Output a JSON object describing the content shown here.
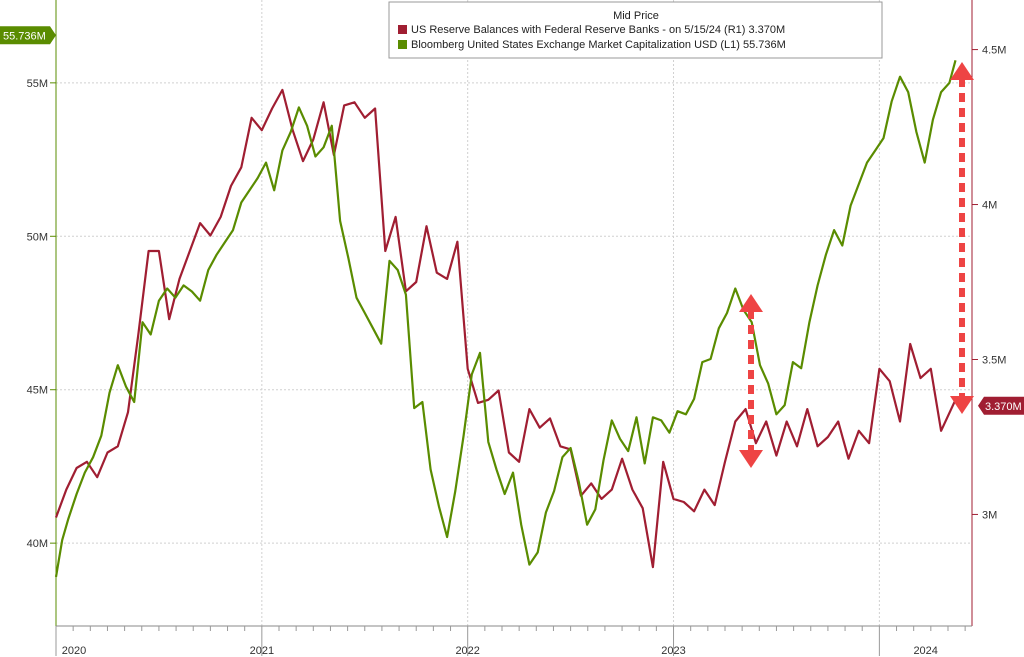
{
  "chart_data": {
    "type": "line",
    "legend": {
      "header": "Mid Price",
      "placement": "top-center",
      "entries": [
        {
          "label": "US Reserve Balances with Federal Reserve Banks -  on 5/15/24  (R1) 3.370M",
          "color": "#a01e32"
        },
        {
          "label": "Bloomberg United States Exchange Market Capitalization USD  (L1)     55.736M",
          "color": "#5a8c00"
        }
      ]
    },
    "y_left": {
      "ticks": [
        40,
        45,
        50,
        55
      ],
      "tick_labels": [
        "40M",
        "45M",
        "50M",
        "55M"
      ],
      "range": [
        37.3,
        57.7
      ]
    },
    "y_right": {
      "ticks": [
        3.0,
        3.5,
        4.0,
        4.5
      ],
      "tick_labels": [
        "3M",
        "3.5M",
        "4M",
        "4.5M"
      ],
      "range": [
        2.64,
        4.66
      ]
    },
    "x_axis": {
      "year_labels": [
        "2020",
        "2021",
        "2022",
        "2023",
        "2024"
      ],
      "range": [
        2020.0,
        2024.45
      ]
    },
    "current_value_tags": {
      "left": {
        "text": "55.736M",
        "color": "#5a8c00"
      },
      "right": {
        "text": "3.370M",
        "color": "#a01e32"
      }
    },
    "grid": true,
    "series": [
      {
        "name": "US Reserve Balances with Federal Reserve Banks",
        "axis": "right",
        "color": "#a01e32",
        "x": [
          2020.0,
          2020.05,
          2020.1,
          2020.15,
          2020.2,
          2020.25,
          2020.3,
          2020.35,
          2020.4,
          2020.45,
          2020.5,
          2020.55,
          2020.6,
          2020.65,
          2020.7,
          2020.75,
          2020.8,
          2020.85,
          2020.9,
          2020.95,
          2021.0,
          2021.05,
          2021.1,
          2021.15,
          2021.2,
          2021.25,
          2021.3,
          2021.35,
          2021.4,
          2021.45,
          2021.5,
          2021.55,
          2021.6,
          2021.65,
          2021.7,
          2021.75,
          2021.8,
          2021.85,
          2021.9,
          2021.95,
          2022.0,
          2022.05,
          2022.1,
          2022.15,
          2022.2,
          2022.25,
          2022.3,
          2022.35,
          2022.4,
          2022.45,
          2022.5,
          2022.55,
          2022.6,
          2022.65,
          2022.7,
          2022.75,
          2022.8,
          2022.85,
          2022.9,
          2022.95,
          2023.0,
          2023.05,
          2023.1,
          2023.15,
          2023.2,
          2023.25,
          2023.3,
          2023.35,
          2023.4,
          2023.45,
          2023.5,
          2023.55,
          2023.6,
          2023.65,
          2023.7,
          2023.75,
          2023.8,
          2023.85,
          2023.9,
          2023.95,
          2024.0,
          2024.05,
          2024.1,
          2024.15,
          2024.2,
          2024.25,
          2024.3,
          2024.37
        ],
        "values": [
          2.99,
          3.08,
          3.15,
          3.17,
          3.12,
          3.2,
          3.22,
          3.33,
          3.58,
          3.85,
          3.85,
          3.63,
          3.76,
          3.85,
          3.94,
          3.9,
          3.96,
          4.06,
          4.12,
          4.28,
          4.24,
          4.31,
          4.37,
          4.24,
          4.14,
          4.21,
          4.33,
          4.16,
          4.32,
          4.33,
          4.28,
          4.31,
          3.85,
          3.96,
          3.72,
          3.75,
          3.93,
          3.78,
          3.76,
          3.88,
          3.47,
          3.36,
          3.37,
          3.4,
          3.2,
          3.17,
          3.34,
          3.28,
          3.31,
          3.22,
          3.21,
          3.06,
          3.1,
          3.05,
          3.08,
          3.18,
          3.08,
          3.02,
          2.83,
          3.17,
          3.05,
          3.04,
          3.01,
          3.08,
          3.03,
          3.17,
          3.3,
          3.34,
          3.23,
          3.3,
          3.19,
          3.3,
          3.22,
          3.34,
          3.22,
          3.25,
          3.3,
          3.18,
          3.27,
          3.23,
          3.47,
          3.43,
          3.3,
          3.55,
          3.44,
          3.47,
          3.27,
          3.37
        ]
      },
      {
        "name": "Bloomberg United States Exchange Market Capitalization USD",
        "axis": "left",
        "color": "#5a8c00",
        "x": [
          2020.0,
          2020.03,
          2020.06,
          2020.1,
          2020.14,
          2020.18,
          2020.22,
          2020.26,
          2020.3,
          2020.34,
          2020.38,
          2020.42,
          2020.46,
          2020.5,
          2020.54,
          2020.58,
          2020.62,
          2020.66,
          2020.7,
          2020.74,
          2020.78,
          2020.82,
          2020.86,
          2020.9,
          2020.94,
          2020.98,
          2021.02,
          2021.06,
          2021.1,
          2021.14,
          2021.18,
          2021.22,
          2021.26,
          2021.3,
          2021.34,
          2021.38,
          2021.42,
          2021.46,
          2021.5,
          2021.54,
          2021.58,
          2021.62,
          2021.66,
          2021.7,
          2021.74,
          2021.78,
          2021.82,
          2021.86,
          2021.9,
          2021.94,
          2021.98,
          2022.02,
          2022.06,
          2022.1,
          2022.14,
          2022.18,
          2022.22,
          2022.26,
          2022.3,
          2022.34,
          2022.38,
          2022.42,
          2022.46,
          2022.5,
          2022.54,
          2022.58,
          2022.62,
          2022.66,
          2022.7,
          2022.74,
          2022.78,
          2022.82,
          2022.86,
          2022.9,
          2022.94,
          2022.98,
          2023.02,
          2023.06,
          2023.1,
          2023.14,
          2023.18,
          2023.22,
          2023.26,
          2023.3,
          2023.34,
          2023.38,
          2023.42,
          2023.46,
          2023.5,
          2023.54,
          2023.58,
          2023.62,
          2023.66,
          2023.7,
          2023.74,
          2023.78,
          2023.82,
          2023.86,
          2023.9,
          2023.94,
          2023.98,
          2024.02,
          2024.06,
          2024.1,
          2024.14,
          2024.18,
          2024.22,
          2024.26,
          2024.3,
          2024.34,
          2024.37
        ],
        "values": [
          38.9,
          40.1,
          40.8,
          41.6,
          42.3,
          42.8,
          43.5,
          44.9,
          45.8,
          45.1,
          44.6,
          47.2,
          46.8,
          47.9,
          48.3,
          48.0,
          48.4,
          48.2,
          47.9,
          48.9,
          49.4,
          49.8,
          50.2,
          51.1,
          51.5,
          51.9,
          52.4,
          51.5,
          52.8,
          53.4,
          54.2,
          53.6,
          52.6,
          52.9,
          53.6,
          50.5,
          49.3,
          48.0,
          47.5,
          47.0,
          46.5,
          49.2,
          48.9,
          48.1,
          44.4,
          44.6,
          42.4,
          41.2,
          40.2,
          41.7,
          43.5,
          45.5,
          46.2,
          43.3,
          42.4,
          41.6,
          42.3,
          40.6,
          39.3,
          39.7,
          41.0,
          41.7,
          42.8,
          43.1,
          42.0,
          40.6,
          41.1,
          42.7,
          44.0,
          43.4,
          43.0,
          44.1,
          42.6,
          44.1,
          44.0,
          43.6,
          44.3,
          44.2,
          44.7,
          45.9,
          46.0,
          47.0,
          47.5,
          48.3,
          47.6,
          47.2,
          45.8,
          45.2,
          44.2,
          44.5,
          45.9,
          45.7,
          47.2,
          48.4,
          49.4,
          50.2,
          49.7,
          51.0,
          51.7,
          52.4,
          52.8,
          53.2,
          54.4,
          55.2,
          54.7,
          53.4,
          52.4,
          53.8,
          54.7,
          55.0,
          55.736
        ]
      }
    ]
  }
}
